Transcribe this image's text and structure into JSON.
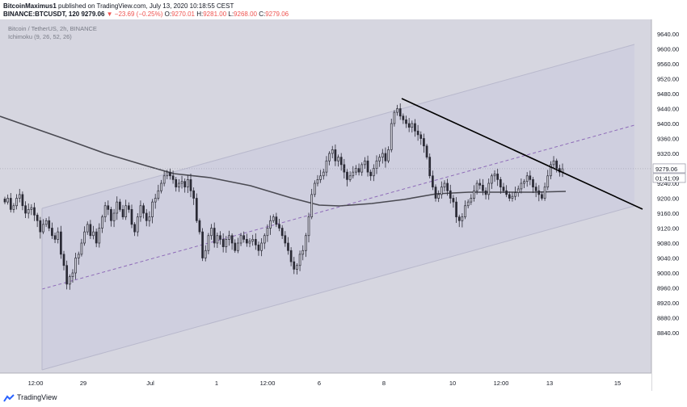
{
  "header": {
    "author": "BitcoinMaximus1",
    "published": "published on TradingView.com, July 13, 2020 10:18:55 CEST",
    "symbol_line": "BINANCE:BTCUSDT, 120",
    "last": "9279.06",
    "change": "▼ −23.69 (−0.25%)",
    "o_label": "O:",
    "o": "9270.01",
    "h_label": "H:",
    "h": "9281.00",
    "l_label": "L:",
    "l": "9268.00",
    "c_label": "C:",
    "c": "9279.06"
  },
  "legend": {
    "title": "Bitcoin / TetherUS, 2h, BINANCE",
    "indicator": "Ichimoku (9, 26, 52, 26)"
  },
  "price_tag": "9279.06",
  "countdown": "01:41:09",
  "watermark": "TradingView",
  "colors": {
    "background": "#d6d6e0",
    "channel_fill": "#cecede",
    "channel_line": "#b8b8cc",
    "midline": "#8e6bb8",
    "candle": "#2a2a35",
    "baseline": "#4a4a52",
    "trendline": "#000000",
    "price_tag": "#ffffff",
    "price_tag_text": "#131722",
    "header_down": "#ef5350"
  },
  "chart_data": {
    "type": "candlestick",
    "x_ticks": [
      "12:00",
      "29",
      "Jul",
      "1",
      "12:00",
      "6",
      "8",
      "10",
      "12:00",
      "13",
      "15"
    ],
    "y_ticks": [
      9640,
      9600,
      9560,
      9520,
      9480,
      9440,
      9400,
      9360,
      9320,
      9280,
      9240,
      9200,
      9160,
      9120,
      9080,
      9040,
      9000,
      8960,
      8920,
      8880,
      8840
    ],
    "ylim": [
      8822,
      9652
    ],
    "last_price": 9279.06,
    "closes": [
      9190,
      9200,
      9170,
      9180,
      9200,
      9210,
      9180,
      9160,
      9170,
      9175,
      9155,
      9140,
      9110,
      9130,
      9140,
      9120,
      9100,
      9090,
      9110,
      9050,
      9020,
      8970,
      8990,
      9000,
      9040,
      9050,
      9080,
      9110,
      9130,
      9100,
      9110,
      9080,
      9120,
      9150,
      9180,
      9170,
      9140,
      9160,
      9190,
      9170,
      9150,
      9180,
      9170,
      9130,
      9110,
      9150,
      9180,
      9160,
      9140,
      9150,
      9190,
      9200,
      9220,
      9240,
      9260,
      9270,
      9260,
      9250,
      9230,
      9240,
      9245,
      9230,
      9250,
      9220,
      9200,
      9140,
      9110,
      9040,
      9060,
      9100,
      9120,
      9080,
      9100,
      9090,
      9070,
      9090,
      9100,
      9080,
      9060,
      9080,
      9100,
      9090,
      9080,
      9085,
      9090,
      9075,
      9060,
      9080,
      9100,
      9120,
      9140,
      9150,
      9130,
      9120,
      9100,
      9080,
      9060,
      9030,
      9010,
      9020,
      9050,
      9060,
      9100,
      9150,
      9210,
      9240,
      9250,
      9260,
      9270,
      9300,
      9320,
      9330,
      9300,
      9310,
      9290,
      9270,
      9250,
      9260,
      9270,
      9280,
      9270,
      9290,
      9300,
      9270,
      9260,
      9280,
      9300,
      9310,
      9320,
      9300,
      9330,
      9400,
      9430,
      9440,
      9420,
      9410,
      9400,
      9390,
      9400,
      9380,
      9370,
      9360,
      9340,
      9310,
      9260,
      9230,
      9200,
      9210,
      9230,
      9240,
      9220,
      9200,
      9190,
      9150,
      9140,
      9150,
      9180,
      9190,
      9200,
      9220,
      9240,
      9235,
      9220,
      9210,
      9240,
      9260,
      9265,
      9250,
      9230,
      9220,
      9210,
      9200,
      9205,
      9215,
      9225,
      9240,
      9245,
      9260,
      9250,
      9230,
      9220,
      9210,
      9200,
      9230,
      9260,
      9290,
      9300,
      9280,
      9270,
      9279
    ]
  }
}
